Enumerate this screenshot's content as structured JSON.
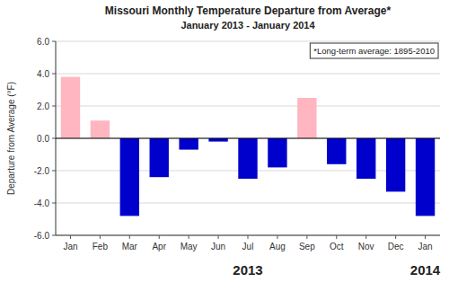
{
  "chart_data": {
    "type": "bar",
    "title": "Missouri Monthly Temperature Departure from Average*",
    "subtitle": "January 2013 - January 2014",
    "y_label": "Departure from Average (°F)",
    "categories": [
      "Jan",
      "Feb",
      "Mar",
      "Apr",
      "May",
      "Jun",
      "Jul",
      "Aug",
      "Sep",
      "Oct",
      "Nov",
      "Dec",
      "Jan"
    ],
    "values": [
      3.8,
      1.1,
      -4.8,
      -2.4,
      -0.7,
      -0.2,
      -2.5,
      -1.8,
      2.5,
      -1.6,
      -2.5,
      -3.3,
      -4.8
    ],
    "colors": [
      "#FFB6C1",
      "#FFB6C1",
      "#0000CC",
      "#0000CC",
      "#0000CC",
      "#0000CC",
      "#0000CC",
      "#0000CC",
      "#FFB6C1",
      "#0000CC",
      "#0000CC",
      "#0000CC",
      "#0000CC"
    ],
    "ylim": [
      -6.0,
      6.0
    ],
    "yticks": [
      {
        "value": -6.0,
        "label": "-6.0"
      },
      {
        "value": -4.0,
        "label": "-4.0"
      },
      {
        "value": -2.0,
        "label": "-2.0"
      },
      {
        "value": 0.0,
        "label": "0.0"
      },
      {
        "value": 2.0,
        "label": "2.0"
      },
      {
        "value": 4.0,
        "label": "4.0"
      },
      {
        "value": 6.0,
        "label": "6.0"
      }
    ],
    "grid": true,
    "annotations": [
      "*Long-term average: 1895-2010",
      "2013",
      "2014"
    ]
  }
}
